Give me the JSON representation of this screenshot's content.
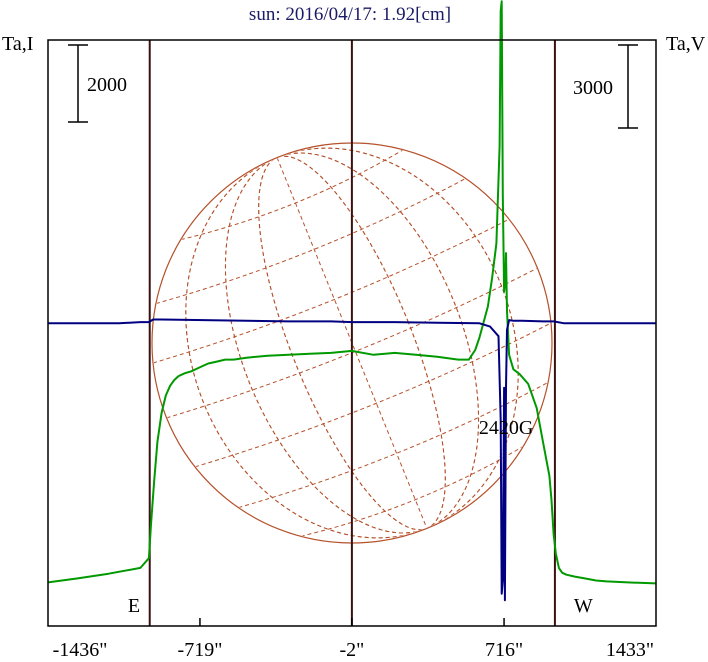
{
  "chart_data": {
    "type": "line",
    "title": "sun: 2016/04/17: 1.92[cm]",
    "left_axis_label": "Ta,I",
    "right_axis_label": "Ta,V",
    "left_scale_bar": {
      "label": "2000",
      "value": 2000
    },
    "right_scale_bar": {
      "label": "3000",
      "value": 3000
    },
    "xlim": [
      -1436,
      1433
    ],
    "x_ticks": [
      {
        "value": -1436,
        "label": "-1436\""
      },
      {
        "value": -719,
        "label": "-719\""
      },
      {
        "value": -2,
        "label": "-2\""
      },
      {
        "value": 716,
        "label": "716\""
      },
      {
        "value": 1433,
        "label": "1433\""
      }
    ],
    "vertical_lines": [
      -956,
      -2,
      956
    ],
    "limb_labels": [
      {
        "text": "E",
        "x": -1030
      },
      {
        "text": "W",
        "x": 1090
      }
    ],
    "annotation": {
      "text": "2420G",
      "x": 716
    },
    "ylim_I": [
      -450,
      5600
    ],
    "ylim_V": [
      -4700,
      4400
    ],
    "series": [
      {
        "name": "I",
        "color": "#009900",
        "axis": "left",
        "x": [
          -1436,
          -1300,
          -1150,
          -1000,
          -960,
          -950,
          -935,
          -920,
          -900,
          -880,
          -860,
          -840,
          -820,
          -790,
          -760,
          -720,
          -680,
          -640,
          -600,
          -560,
          -500,
          -400,
          -300,
          -200,
          -100,
          -2,
          100,
          200,
          300,
          400,
          500,
          550,
          580,
          600,
          640,
          660,
          680,
          695,
          700,
          705,
          710,
          716,
          722,
          725,
          730,
          740,
          760,
          790,
          830,
          870,
          900,
          930,
          940,
          950,
          960,
          975,
          990,
          1010,
          1050,
          1100,
          1150,
          1200,
          1300,
          1433
        ],
        "y": [
          0,
          40,
          90,
          150,
          250,
          600,
          1050,
          1450,
          1750,
          1930,
          2030,
          2090,
          2130,
          2160,
          2180,
          2220,
          2260,
          2280,
          2300,
          2300,
          2320,
          2340,
          2350,
          2360,
          2370,
          2390,
          2350,
          2370,
          2350,
          2330,
          2300,
          2300,
          2400,
          2530,
          2850,
          3150,
          3500,
          4500,
          5900,
          6000,
          4000,
          3000,
          3100,
          3400,
          2800,
          2350,
          2200,
          2150,
          2050,
          1800,
          1450,
          1100,
          850,
          500,
          300,
          150,
          100,
          80,
          60,
          40,
          20,
          10,
          0,
          -10
        ]
      },
      {
        "name": "V",
        "color": "#000080",
        "axis": "right",
        "x": [
          -1436,
          -1100,
          -1000,
          -960,
          -940,
          -900,
          -700,
          -500,
          -300,
          -100,
          -2,
          200,
          400,
          600,
          650,
          690,
          700,
          705,
          710,
          716,
          720,
          725,
          730,
          740,
          760,
          800,
          900,
          950,
          1000,
          1433
        ],
        "y": [
          0,
          0,
          20,
          20,
          60,
          60,
          50,
          40,
          30,
          30,
          20,
          20,
          10,
          0,
          -50,
          -200,
          -1500,
          -4200,
          -4000,
          -1000,
          -4300,
          -1000,
          -100,
          50,
          40,
          40,
          30,
          30,
          0,
          0
        ]
      }
    ]
  }
}
